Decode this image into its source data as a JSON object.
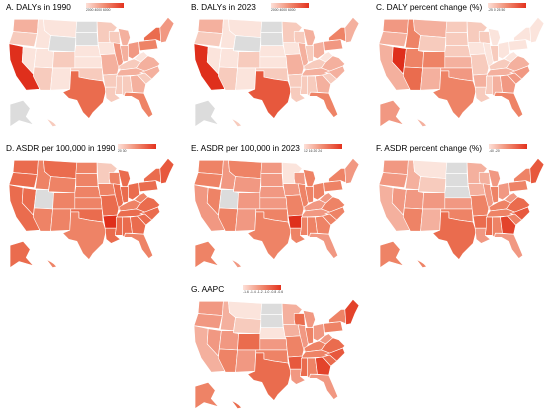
{
  "colors": {
    "empty": "#dcdcdc",
    "low": "#fde0d8",
    "mid": "#f08a70",
    "high": "#e3321e",
    "border": "#ffffff"
  },
  "panels": [
    {
      "id": "A",
      "title": "A. DALYs in 1990",
      "legend_ticks": "2000 4000 6000",
      "levels": {
        "WA": 3,
        "OR": 2,
        "CA": 9,
        "NV": 1,
        "ID": 1,
        "MT": 1,
        "WY": 0,
        "UT": 1,
        "AZ": 2,
        "CO": 2,
        "NM": 1,
        "ND": 0,
        "SD": 0,
        "NE": 1,
        "KS": 1,
        "OK": 2,
        "TX": 6,
        "MN": 2,
        "IA": 1,
        "MO": 3,
        "AR": 2,
        "LA": 2,
        "WI": 2,
        "IL": 4,
        "MI": 3,
        "IN": 3,
        "OH": 4,
        "KY": 2,
        "TN": 3,
        "MS": 2,
        "AL": 2,
        "GA": 3,
        "FL": 5,
        "SC": 2,
        "NC": 3,
        "VA": 3,
        "WV": 1,
        "PA": 5,
        "NY": 6,
        "NE_region": 4,
        "AK": 0,
        "HI": 2
      }
    },
    {
      "id": "B",
      "title": "B. DALYs in 2023",
      "legend_ticks": "2000 4000 6000",
      "levels": {
        "WA": 3,
        "OR": 2,
        "CA": 9,
        "NV": 1,
        "ID": 1,
        "MT": 1,
        "WY": 0,
        "UT": 1,
        "AZ": 2,
        "CO": 2,
        "NM": 1,
        "ND": 0,
        "SD": 0,
        "NE": 1,
        "KS": 1,
        "OK": 2,
        "TX": 7,
        "MN": 2,
        "IA": 1,
        "MO": 3,
        "AR": 2,
        "LA": 2,
        "WI": 2,
        "IL": 3,
        "MI": 3,
        "IN": 2,
        "OH": 3,
        "KY": 2,
        "TN": 3,
        "MS": 2,
        "AL": 2,
        "GA": 3,
        "FL": 5,
        "SC": 2,
        "NC": 3,
        "VA": 3,
        "WV": 1,
        "PA": 4,
        "NY": 5,
        "NE_region": 3,
        "AK": 0,
        "HI": 2
      }
    },
    {
      "id": "C",
      "title": "C. DALY percent change (%)",
      "legend_ticks": "-25 0 25 50",
      "levels": {
        "WA": 4,
        "OR": 3,
        "CA": 3,
        "NV": 9,
        "ID": 5,
        "MT": 3,
        "WY": 2,
        "UT": 5,
        "AZ": 6,
        "CO": 5,
        "NM": 3,
        "ND": 2,
        "SD": 2,
        "NE": 2,
        "KS": 3,
        "OK": 4,
        "TX": 5,
        "MN": 2,
        "IA": 1,
        "MO": 2,
        "AR": 3,
        "LA": 2,
        "WI": 2,
        "IL": 1,
        "MI": 1,
        "IN": 2,
        "OH": 1,
        "KY": 2,
        "TN": 3,
        "MS": 2,
        "AL": 3,
        "GA": 4,
        "FL": 5,
        "SC": 4,
        "NC": 4,
        "VA": 3,
        "WV": 1,
        "PA": 1,
        "NY": 1,
        "NE_region": 1,
        "AK": 4,
        "HI": 3
      }
    },
    {
      "id": "D",
      "title": "D. ASDR per 100,000 in 1990",
      "legend_ticks": "20     30",
      "levels": {
        "WA": 6,
        "OR": 6,
        "CA": 6,
        "NV": 6,
        "ID": 5,
        "MT": 6,
        "WY": 5,
        "UT": 0,
        "AZ": 5,
        "CO": 5,
        "NM": 5,
        "ND": 5,
        "SD": 5,
        "NE": 5,
        "KS": 5,
        "OK": 6,
        "TX": 5,
        "MN": 2,
        "IA": 5,
        "MO": 6,
        "AR": 9,
        "LA": 6,
        "WI": 5,
        "IL": 6,
        "MI": 6,
        "IN": 6,
        "OH": 6,
        "KY": 5,
        "TN": 6,
        "MS": 6,
        "AL": 6,
        "GA": 6,
        "FL": 5,
        "SC": 6,
        "NC": 6,
        "VA": 6,
        "WV": 5,
        "PA": 6,
        "NY": 6,
        "NE_region": 7,
        "AK": 6,
        "HI": 5
      }
    },
    {
      "id": "E",
      "title": "E. ASDR per 100,000 in 2023",
      "legend_ticks": "12 16 20 24",
      "levels": {
        "WA": 5,
        "OR": 5,
        "CA": 4,
        "NV": 5,
        "ID": 4,
        "MT": 5,
        "WY": 4,
        "UT": 0,
        "AZ": 5,
        "CO": 4,
        "NM": 4,
        "ND": 4,
        "SD": 4,
        "NE": 4,
        "KS": 4,
        "OK": 5,
        "TX": 5,
        "MN": 1,
        "IA": 4,
        "MO": 5,
        "AR": 9,
        "LA": 5,
        "WI": 4,
        "IL": 5,
        "MI": 5,
        "IN": 5,
        "OH": 5,
        "KY": 4,
        "TN": 4,
        "MS": 5,
        "AL": 5,
        "GA": 5,
        "FL": 4,
        "SC": 5,
        "NC": 5,
        "VA": 5,
        "WV": 4,
        "PA": 5,
        "NY": 5,
        "NE_region": 4,
        "AK": 5,
        "HI": 4
      }
    },
    {
      "id": "F",
      "title": "F. ASDR percent change (%)",
      "legend_ticks": "-40   -20",
      "levels": {
        "WA": 4,
        "OR": 4,
        "CA": 3,
        "NV": 4,
        "ID": 3,
        "MT": 1,
        "WY": 2,
        "UT": 4,
        "AZ": 5,
        "CO": 4,
        "NM": 3,
        "ND": 0,
        "SD": 0,
        "NE": 0,
        "KS": 4,
        "OK": 5,
        "TX": 6,
        "MN": 3,
        "IA": 3,
        "MO": 5,
        "AR": 6,
        "LA": 4,
        "WI": 3,
        "IL": 4,
        "MI": 4,
        "IN": 5,
        "OH": 4,
        "KY": 5,
        "TN": 5,
        "MS": 6,
        "AL": 5,
        "GA": 8,
        "FL": 4,
        "SC": 5,
        "NC": 7,
        "VA": 6,
        "WV": 4,
        "PA": 5,
        "NY": 5,
        "NE_region": 7,
        "AK": 5,
        "HI": 5
      }
    },
    {
      "id": "G",
      "title": "G. AAPC",
      "legend_ticks": "-1.6 -1.4 -1.2 -1.0 -0.8 -0.6",
      "levels": {
        "WA": 4,
        "OR": 4,
        "CA": 3,
        "NV": 4,
        "ID": 3,
        "MT": 1,
        "WY": 2,
        "UT": 4,
        "AZ": 5,
        "CO": 6,
        "NM": 4,
        "ND": 0,
        "SD": 0,
        "NE": 1,
        "KS": 4,
        "OK": 5,
        "TX": 6,
        "MN": 3,
        "IA": 3,
        "MO": 5,
        "AR": 7,
        "LA": 4,
        "WI": 6,
        "IL": 4,
        "MI": 4,
        "IN": 5,
        "OH": 4,
        "KY": 5,
        "TN": 5,
        "MS": 6,
        "AL": 5,
        "GA": 8,
        "FL": 4,
        "SC": 6,
        "NC": 7,
        "VA": 6,
        "WV": 4,
        "PA": 5,
        "NY": 5,
        "NE_region": 8,
        "AK": 5,
        "HI": 6
      }
    }
  ]
}
